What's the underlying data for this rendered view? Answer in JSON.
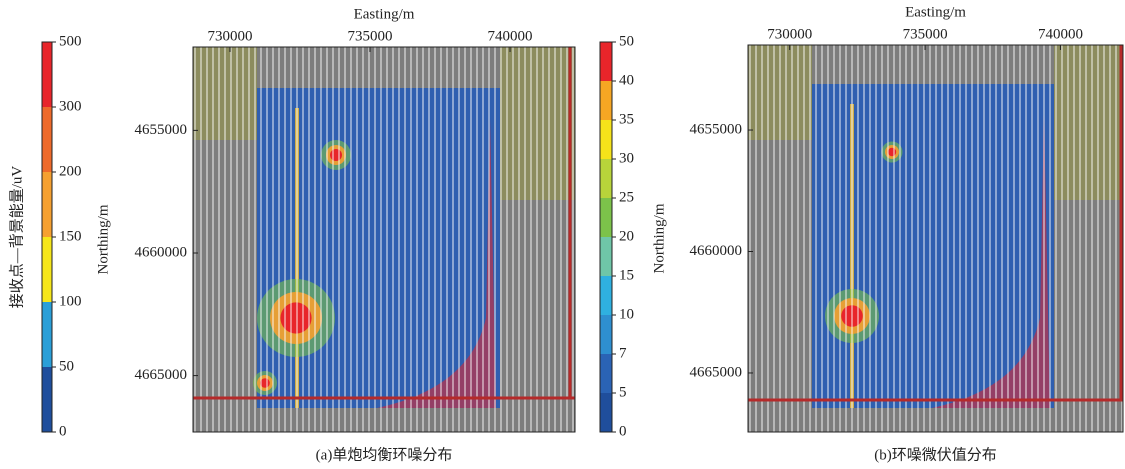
{
  "chart_data": [
    {
      "type": "heatmap",
      "title": "(a)单炮均衡环噪分布",
      "xlabel": "Easting/m",
      "ylabel": "Northing/m",
      "xlim": [
        728680,
        742320
      ],
      "xticks": [
        730000,
        735000,
        740000
      ],
      "ylim": [
        4651600,
        4667300
      ],
      "y_inverted": true,
      "yticks": [
        4655000,
        4660000,
        4665000
      ],
      "colorbar": {
        "label": "接收点—背景能量/uV",
        "ticks": [
          0,
          50,
          100,
          150,
          200,
          300,
          500
        ],
        "colors": [
          "#1f4e9c",
          "#2a9fd8",
          "#f5e61a",
          "#f5a030",
          "#ee6a2a",
          "#e8252a"
        ]
      }
    },
    {
      "type": "heatmap",
      "title": "(b)环噪微伏值分布",
      "xlabel": "Easting/m",
      "ylabel": "Northing/m",
      "xlim": [
        728460,
        742310
      ],
      "xticks": [
        730000,
        735000,
        740000
      ],
      "ylim": [
        4651500,
        4667430
      ],
      "y_inverted": true,
      "yticks": [
        4655000,
        4660000,
        4665000
      ],
      "colorbar": {
        "ticks": [
          0,
          5,
          7,
          10,
          15,
          20,
          25,
          30,
          35,
          40,
          50
        ],
        "colors": [
          "#1f4e9c",
          "#2a63b5",
          "#2e8fd0",
          "#2fb0e0",
          "#6fc6a8",
          "#7cc24a",
          "#b8d43a",
          "#f5e31a",
          "#f6a623",
          "#e8252a"
        ]
      }
    }
  ]
}
